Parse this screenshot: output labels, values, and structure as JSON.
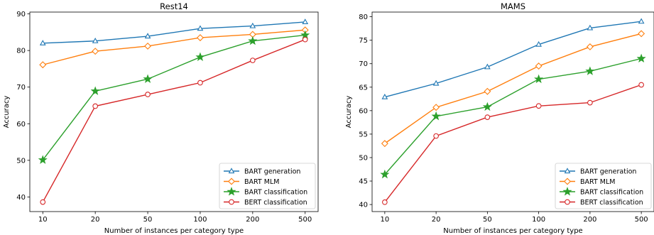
{
  "chart_data": [
    {
      "type": "line",
      "title": "Rest14",
      "xlabel": "Number of instances per category type",
      "ylabel": "Accuracy",
      "categories": [
        "10",
        "20",
        "50",
        "100",
        "200",
        "500"
      ],
      "ylim": [
        36,
        90.5
      ],
      "yticks": [
        40,
        50,
        60,
        70,
        80,
        90
      ],
      "grid": false,
      "legend_position": "bottom-right",
      "series": [
        {
          "name": "BART generation",
          "color": "#1f77b4",
          "marker": "triangle",
          "values": [
            82.0,
            82.6,
            83.9,
            86.0,
            86.7,
            87.8
          ]
        },
        {
          "name": "BART MLM",
          "color": "#ff7f0e",
          "marker": "diamond",
          "values": [
            76.1,
            79.8,
            81.2,
            83.5,
            84.4,
            85.6
          ]
        },
        {
          "name": "BART classification",
          "color": "#2ca02c",
          "marker": "star",
          "values": [
            50.1,
            68.9,
            72.2,
            78.2,
            82.6,
            84.2
          ]
        },
        {
          "name": "BERT classification",
          "color": "#d62728",
          "marker": "circle",
          "values": [
            38.6,
            64.8,
            68.0,
            71.2,
            77.3,
            83.0
          ]
        }
      ]
    },
    {
      "type": "line",
      "title": "MAMS",
      "xlabel": "Number of instances per category type",
      "ylabel": "Accuracy",
      "categories": [
        "10",
        "20",
        "50",
        "100",
        "200",
        "500"
      ],
      "ylim": [
        38.5,
        81
      ],
      "yticks": [
        40,
        45,
        50,
        55,
        60,
        65,
        70,
        75,
        80
      ],
      "grid": false,
      "legend_position": "bottom-right",
      "series": [
        {
          "name": "BART generation",
          "color": "#1f77b4",
          "marker": "triangle",
          "values": [
            62.9,
            65.8,
            69.3,
            74.1,
            77.6,
            79.0
          ]
        },
        {
          "name": "BART MLM",
          "color": "#ff7f0e",
          "marker": "diamond",
          "values": [
            53.0,
            60.7,
            64.1,
            69.5,
            73.6,
            76.4
          ]
        },
        {
          "name": "BART classification",
          "color": "#2ca02c",
          "marker": "star",
          "values": [
            46.4,
            58.8,
            60.8,
            66.7,
            68.4,
            71.1
          ]
        },
        {
          "name": "BERT classification",
          "color": "#d62728",
          "marker": "circle",
          "values": [
            40.5,
            54.6,
            58.6,
            61.0,
            61.7,
            65.5
          ]
        }
      ]
    }
  ]
}
